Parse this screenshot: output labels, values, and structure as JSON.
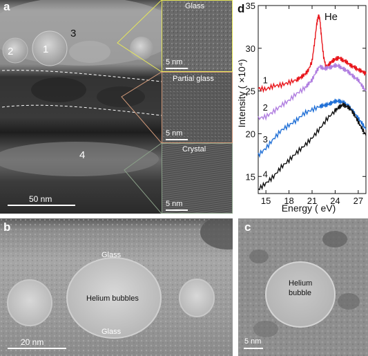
{
  "panel_a": {
    "letter": "a",
    "regions": [
      "1",
      "2",
      "3",
      "4"
    ],
    "scale_bar": "50 nm",
    "insets": [
      {
        "title": "Glass",
        "scale_bar": "5 nm"
      },
      {
        "title": "Partial glass",
        "scale_bar": "5 nm"
      },
      {
        "title": "Crystal",
        "scale_bar": "5 nm"
      }
    ]
  },
  "panel_b": {
    "letter": "b",
    "labels": [
      "Glass",
      "Helium bubbles",
      "Glass"
    ],
    "scale_bar": "20 nm"
  },
  "panel_c": {
    "letter": "c",
    "label_line1": "Helium",
    "label_line2": "bubble",
    "scale_bar": "5 nm"
  },
  "chart_data": {
    "letter": "d",
    "type": "line",
    "xlabel": "Energy (  eV)",
    "ylabel": "Intensity (  ×10⁴)",
    "xlim": [
      14,
      28
    ],
    "ylim": [
      13,
      35
    ],
    "xticks": [
      15,
      18,
      21,
      24,
      27
    ],
    "yticks": [
      15,
      20,
      25,
      30,
      35
    ],
    "annotation": "He",
    "series": [
      {
        "name": "1",
        "color": "#e8151b",
        "x": [
          14,
          15,
          16,
          17,
          18,
          19,
          19.5,
          20,
          20.5,
          21,
          21.3,
          21.6,
          21.8,
          22,
          22.2,
          22.5,
          22.8,
          23.2,
          23.6,
          24,
          24.5,
          25,
          25.5,
          26,
          26.5,
          27,
          27.5,
          28
        ],
        "y": [
          25.3,
          25.2,
          25.6,
          25.7,
          26.0,
          26.3,
          26.6,
          26.9,
          27.4,
          28.5,
          30.5,
          32.8,
          33.8,
          33.5,
          31.5,
          29.0,
          27.8,
          28.1,
          28.5,
          28.7,
          28.9,
          28.6,
          28.4,
          28.0,
          27.8,
          27.5,
          27.3,
          27.0
        ]
      },
      {
        "name": "2",
        "color": "#b07ee0",
        "x": [
          14,
          15,
          16,
          17,
          18,
          19,
          20,
          20.5,
          21,
          21.5,
          22,
          22.5,
          23,
          23.5,
          24,
          24.5,
          25,
          25.5,
          26,
          26.5,
          27,
          27.5,
          28
        ],
        "y": [
          21.8,
          22.0,
          22.6,
          23.3,
          23.9,
          24.7,
          25.3,
          25.8,
          26.3,
          27.2,
          27.9,
          27.6,
          27.7,
          27.8,
          28.0,
          27.9,
          27.6,
          27.4,
          27.0,
          26.6,
          26.3,
          25.6,
          25.0
        ]
      },
      {
        "name": "3",
        "color": "#1f6fd6",
        "x": [
          14,
          15,
          16,
          17,
          18,
          19,
          20,
          21,
          22,
          22.5,
          23,
          23.5,
          24,
          24.5,
          25,
          25.5,
          26,
          26.5,
          27,
          27.5,
          28
        ],
        "y": [
          17.5,
          18.3,
          19.4,
          20.4,
          21.0,
          21.6,
          22.4,
          22.8,
          23.2,
          23.3,
          23.4,
          23.6,
          23.8,
          23.8,
          23.7,
          23.4,
          23.0,
          22.4,
          21.8,
          21.2,
          20.5
        ]
      },
      {
        "name": "4",
        "color": "#111111",
        "x": [
          14,
          15,
          16,
          17,
          18,
          19,
          20,
          21,
          22,
          23,
          24,
          24.5,
          25,
          25.5,
          26,
          26.5,
          27,
          27.5,
          28
        ],
        "y": [
          13.5,
          14.2,
          15.0,
          16.1,
          16.9,
          17.8,
          18.6,
          19.5,
          20.6,
          21.8,
          22.7,
          23.1,
          23.4,
          23.2,
          22.9,
          22.2,
          21.4,
          20.6,
          19.8
        ]
      }
    ]
  }
}
